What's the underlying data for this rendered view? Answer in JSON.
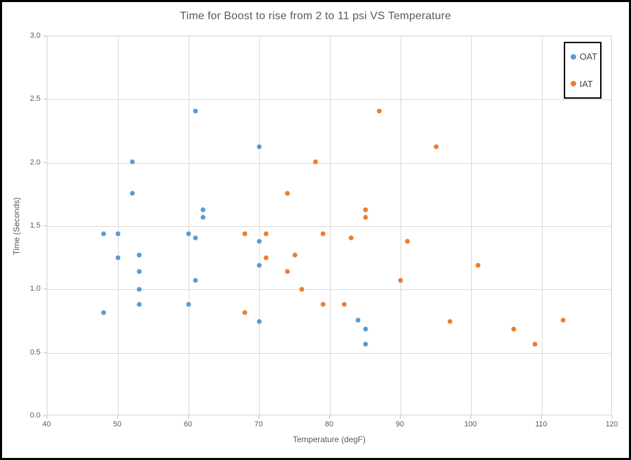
{
  "window": {
    "background_color": "#FFFFFF",
    "frame_color": "#000000"
  },
  "colors": {
    "gridline": "#D9D9D9",
    "axis_line": "#D2D2D2",
    "tick_mark": "#BFBFBF",
    "axis_text": "#595959",
    "title_text": "#595959",
    "legend_text": "#404040",
    "legend_border": "#000000",
    "oat_blue": "#5B9BD5",
    "iat_orange": "#ED7D31"
  },
  "chart_data": {
    "type": "scatter",
    "title": "Time for Boost to rise from 2 to 11 psi VS Temperature",
    "xlabel": "Temperature (degF)",
    "ylabel": "Time (Seconds)",
    "xlim": [
      40,
      120
    ],
    "ylim": [
      0.0,
      3.0
    ],
    "grid": true,
    "legend_position": "top-right",
    "xticks": [
      {
        "v": 40,
        "label": "40"
      },
      {
        "v": 50,
        "label": "50"
      },
      {
        "v": 60,
        "label": "60"
      },
      {
        "v": 70,
        "label": "70"
      },
      {
        "v": 80,
        "label": "80"
      },
      {
        "v": 90,
        "label": "90"
      },
      {
        "v": 100,
        "label": "100"
      },
      {
        "v": 110,
        "label": "110"
      },
      {
        "v": 120,
        "label": "120"
      }
    ],
    "yticks": [
      {
        "v": 0.0,
        "label": "0.0"
      },
      {
        "v": 0.5,
        "label": "0.5"
      },
      {
        "v": 1.0,
        "label": "1.0"
      },
      {
        "v": 1.5,
        "label": "1.5"
      },
      {
        "v": 2.0,
        "label": "2.0"
      },
      {
        "v": 2.5,
        "label": "2.5"
      },
      {
        "v": 3.0,
        "label": "3.0"
      }
    ],
    "series": [
      {
        "name": "OAT",
        "color": "#5B9BD5",
        "marker": "circle",
        "points": [
          [
            48,
            1.44
          ],
          [
            48,
            0.82
          ],
          [
            50,
            1.44
          ],
          [
            50,
            1.25
          ],
          [
            52,
            2.01
          ],
          [
            52,
            1.76
          ],
          [
            53,
            1.27
          ],
          [
            53,
            1.14
          ],
          [
            53,
            1.0
          ],
          [
            53,
            0.88
          ],
          [
            60,
            1.44
          ],
          [
            60,
            0.88
          ],
          [
            61,
            2.41
          ],
          [
            61,
            1.41
          ],
          [
            61,
            1.07
          ],
          [
            62,
            1.63
          ],
          [
            62,
            1.57
          ],
          [
            70,
            2.13
          ],
          [
            70,
            1.38
          ],
          [
            70,
            1.19
          ],
          [
            70,
            0.75
          ],
          [
            84,
            0.76
          ],
          [
            85,
            0.69
          ],
          [
            85,
            0.57
          ]
        ]
      },
      {
        "name": "IAT",
        "color": "#ED7D31",
        "marker": "circle",
        "points": [
          [
            68,
            1.44
          ],
          [
            68,
            0.82
          ],
          [
            71,
            1.44
          ],
          [
            71,
            1.25
          ],
          [
            74,
            1.76
          ],
          [
            74,
            1.14
          ],
          [
            75,
            1.27
          ],
          [
            76,
            1.0
          ],
          [
            78,
            2.01
          ],
          [
            79,
            1.44
          ],
          [
            79,
            0.88
          ],
          [
            82,
            0.88
          ],
          [
            83,
            1.41
          ],
          [
            85,
            1.63
          ],
          [
            85,
            1.57
          ],
          [
            87,
            2.41
          ],
          [
            90,
            1.07
          ],
          [
            91,
            1.38
          ],
          [
            95,
            2.13
          ],
          [
            97,
            0.75
          ],
          [
            101,
            1.19
          ],
          [
            106,
            0.69
          ],
          [
            109,
            0.57
          ],
          [
            113,
            0.76
          ]
        ]
      }
    ]
  }
}
